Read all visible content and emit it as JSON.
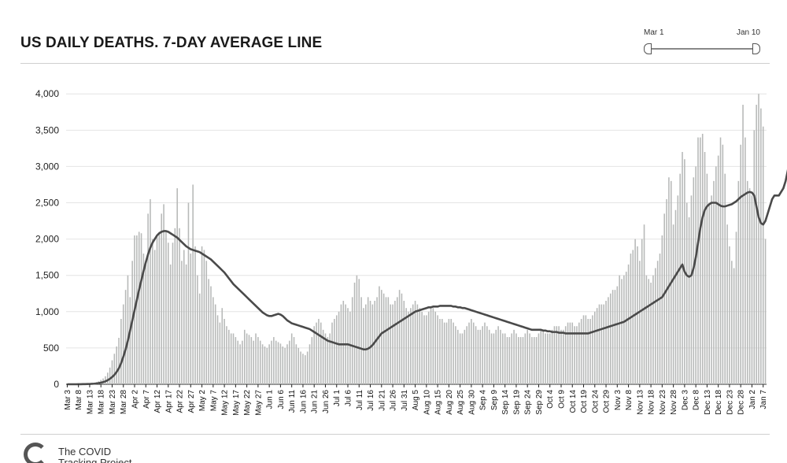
{
  "title": "US DAILY DEATHS. 7-DAY AVERAGE LINE",
  "slider": {
    "start_label": "Mar 1",
    "end_label": "Jan 10"
  },
  "logo": {
    "text": "The COVID\nTracking Project"
  },
  "colors": {
    "bar": "#b7b9b8",
    "line": "#4a4a4a",
    "grid": "#e4e4e4",
    "axis": "#222222"
  },
  "chart_data": {
    "type": "bar",
    "title": "US DAILY DEATHS. 7-DAY AVERAGE LINE",
    "xlabel": "",
    "ylabel": "",
    "ylim": [
      0,
      4100
    ],
    "yticks": [
      0,
      500,
      1000,
      1500,
      2000,
      2500,
      3000,
      3500,
      4000
    ],
    "ytick_labels": [
      "0",
      "500",
      "1,000",
      "1,500",
      "2,000",
      "2,500",
      "3,000",
      "3,500",
      "4,000"
    ],
    "grid": true,
    "x_start": "Mar 3",
    "x_end": "Jan 9",
    "tick_labels": [
      "Mar 3",
      "Mar 8",
      "Mar 13",
      "Mar 18",
      "Mar 23",
      "Mar 28",
      "Apr 2",
      "Apr 7",
      "Apr 12",
      "Apr 17",
      "Apr 22",
      "Apr 27",
      "May 2",
      "May 7",
      "May 12",
      "May 17",
      "May 22",
      "May 27",
      "Jun 1",
      "Jun 6",
      "Jun 11",
      "Jun 16",
      "Jun 21",
      "Jun 26",
      "Jul 1",
      "Jul 6",
      "Jul 11",
      "Jul 16",
      "Jul 21",
      "Jul 26",
      "Jul 31",
      "Aug 5",
      "Aug 10",
      "Aug 15",
      "Aug 20",
      "Aug 25",
      "Aug 30",
      "Sep 4",
      "Sep 9",
      "Sep 14",
      "Sep 19",
      "Sep 24",
      "Sep 29",
      "Oct 4",
      "Oct 9",
      "Oct 14",
      "Oct 19",
      "Oct 24",
      "Oct 29",
      "Nov 3",
      "Nov 8",
      "Nov 13",
      "Nov 18",
      "Nov 23",
      "Nov 28",
      "Dec 3",
      "Dec 8",
      "Dec 13",
      "Dec 18",
      "Dec 23",
      "Dec 28",
      "Jan 2",
      "Jan 7"
    ],
    "tick_interval_days": 5,
    "series": [
      {
        "name": "Daily deaths",
        "type": "bar",
        "values": [
          0,
          0,
          0,
          0,
          0,
          1,
          2,
          3,
          3,
          5,
          8,
          10,
          20,
          30,
          40,
          60,
          80,
          110,
          160,
          230,
          330,
          420,
          520,
          640,
          900,
          1100,
          1300,
          1500,
          1200,
          1700,
          2050,
          2050,
          2100,
          2080,
          1800,
          1650,
          2350,
          2550,
          2000,
          1850,
          2050,
          2100,
          2350,
          2480,
          2100,
          1950,
          1650,
          1950,
          2150,
          2700,
          2150,
          1700,
          1850,
          1650,
          2500,
          1800,
          2750,
          1900,
          1500,
          1250,
          1900,
          1850,
          1700,
          1450,
          1350,
          1200,
          1100,
          950,
          850,
          1050,
          900,
          800,
          750,
          700,
          700,
          650,
          600,
          550,
          600,
          750,
          700,
          680,
          650,
          600,
          700,
          650,
          600,
          550,
          520,
          500,
          550,
          600,
          650,
          600,
          580,
          560,
          520,
          500,
          550,
          600,
          700,
          650,
          550,
          500,
          450,
          420,
          400,
          450,
          550,
          650,
          800,
          850,
          900,
          850,
          750,
          700,
          650,
          700,
          850,
          900,
          950,
          1000,
          1100,
          1150,
          1100,
          1050,
          1000,
          1200,
          1400,
          1500,
          1450,
          1200,
          1050,
          1100,
          1200,
          1150,
          1100,
          1150,
          1200,
          1350,
          1300,
          1250,
          1200,
          1200,
          1100,
          1100,
          1150,
          1200,
          1300,
          1250,
          1150,
          1050,
          1000,
          1050,
          1100,
          1150,
          1100,
          1050,
          1000,
          950,
          950,
          1000,
          1050,
          1050,
          1000,
          950,
          900,
          900,
          850,
          850,
          900,
          900,
          850,
          800,
          750,
          700,
          700,
          750,
          800,
          850,
          900,
          850,
          800,
          750,
          750,
          800,
          850,
          800,
          750,
          700,
          700,
          750,
          800,
          750,
          700,
          700,
          650,
          650,
          700,
          750,
          700,
          650,
          650,
          650,
          700,
          750,
          700,
          650,
          650,
          650,
          700,
          750,
          750,
          700,
          700,
          700,
          750,
          800,
          800,
          800,
          750,
          750,
          800,
          850,
          850,
          850,
          800,
          800,
          850,
          900,
          950,
          950,
          900,
          900,
          950,
          1000,
          1050,
          1100,
          1100,
          1100,
          1150,
          1200,
          1250,
          1300,
          1300,
          1350,
          1500,
          1450,
          1500,
          1550,
          1650,
          1800,
          1850,
          2000,
          1900,
          1700,
          2000,
          2200,
          1500,
          1450,
          1400,
          1500,
          1600,
          1700,
          1800,
          2050,
          2350,
          2550,
          2850,
          2800,
          2200,
          2400,
          2600,
          2900,
          3200,
          3100,
          2500,
          2300,
          2600,
          2850,
          3000,
          3400,
          3400,
          3450,
          3200,
          2900,
          2500,
          2600,
          2800,
          3000,
          3150,
          3400,
          3300,
          2900,
          2200,
          1900,
          1700,
          1600,
          2100,
          2800,
          3300,
          3850,
          3400,
          2800,
          2700,
          2600,
          3500,
          3850,
          4000,
          3800,
          3550,
          2000
        ]
      },
      {
        "name": "7-day average",
        "type": "line",
        "values": [
          0,
          0,
          0,
          0,
          0,
          1,
          1,
          2,
          2,
          3,
          4,
          6,
          8,
          11,
          16,
          22,
          30,
          40,
          55,
          75,
          100,
          130,
          170,
          220,
          290,
          380,
          480,
          600,
          740,
          880,
          1020,
          1160,
          1300,
          1430,
          1560,
          1680,
          1790,
          1880,
          1950,
          2000,
          2050,
          2080,
          2100,
          2110,
          2110,
          2100,
          2080,
          2060,
          2040,
          2020,
          1990,
          1960,
          1930,
          1900,
          1880,
          1860,
          1850,
          1840,
          1830,
          1820,
          1800,
          1780,
          1760,
          1740,
          1720,
          1690,
          1660,
          1630,
          1600,
          1570,
          1540,
          1500,
          1460,
          1420,
          1380,
          1350,
          1320,
          1290,
          1260,
          1230,
          1200,
          1170,
          1140,
          1110,
          1080,
          1050,
          1020,
          990,
          970,
          950,
          940,
          940,
          950,
          960,
          970,
          960,
          940,
          910,
          880,
          860,
          840,
          830,
          820,
          810,
          800,
          790,
          780,
          770,
          760,
          740,
          720,
          700,
          680,
          660,
          640,
          620,
          600,
          590,
          580,
          570,
          560,
          550,
          550,
          550,
          550,
          550,
          540,
          530,
          520,
          510,
          500,
          490,
          480,
          480,
          490,
          510,
          540,
          580,
          620,
          660,
          700,
          720,
          740,
          760,
          780,
          800,
          820,
          840,
          860,
          880,
          900,
          920,
          940,
          960,
          980,
          1000,
          1010,
          1020,
          1030,
          1040,
          1050,
          1060,
          1060,
          1070,
          1070,
          1070,
          1080,
          1080,
          1080,
          1080,
          1080,
          1080,
          1070,
          1070,
          1060,
          1060,
          1050,
          1050,
          1040,
          1030,
          1020,
          1010,
          1000,
          990,
          980,
          970,
          960,
          950,
          940,
          930,
          920,
          910,
          900,
          890,
          880,
          870,
          860,
          850,
          840,
          830,
          820,
          810,
          800,
          790,
          780,
          770,
          760,
          750,
          750,
          750,
          750,
          750,
          740,
          740,
          730,
          730,
          720,
          720,
          720,
          710,
          710,
          710,
          700,
          700,
          700,
          700,
          700,
          700,
          700,
          700,
          700,
          700,
          700,
          710,
          720,
          730,
          740,
          750,
          760,
          770,
          780,
          790,
          800,
          810,
          820,
          830,
          840,
          850,
          860,
          880,
          900,
          920,
          940,
          960,
          980,
          1000,
          1020,
          1040,
          1060,
          1080,
          1100,
          1120,
          1140,
          1160,
          1180,
          1200,
          1250,
          1300,
          1350,
          1400,
          1450,
          1500,
          1550,
          1600,
          1650,
          1550,
          1500,
          1480,
          1500,
          1600,
          1750,
          1950,
          2150,
          2300,
          2400,
          2450,
          2480,
          2500,
          2500,
          2500,
          2480,
          2460,
          2450,
          2450,
          2460,
          2470,
          2480,
          2500,
          2520,
          2550,
          2580,
          2600,
          2620,
          2640,
          2650,
          2640,
          2600,
          2450,
          2300,
          2220,
          2200,
          2250,
          2350,
          2450,
          2550,
          2600,
          2600,
          2600,
          2650,
          2700,
          2800,
          2950,
          3100,
          3150,
          3200
        ]
      }
    ]
  }
}
